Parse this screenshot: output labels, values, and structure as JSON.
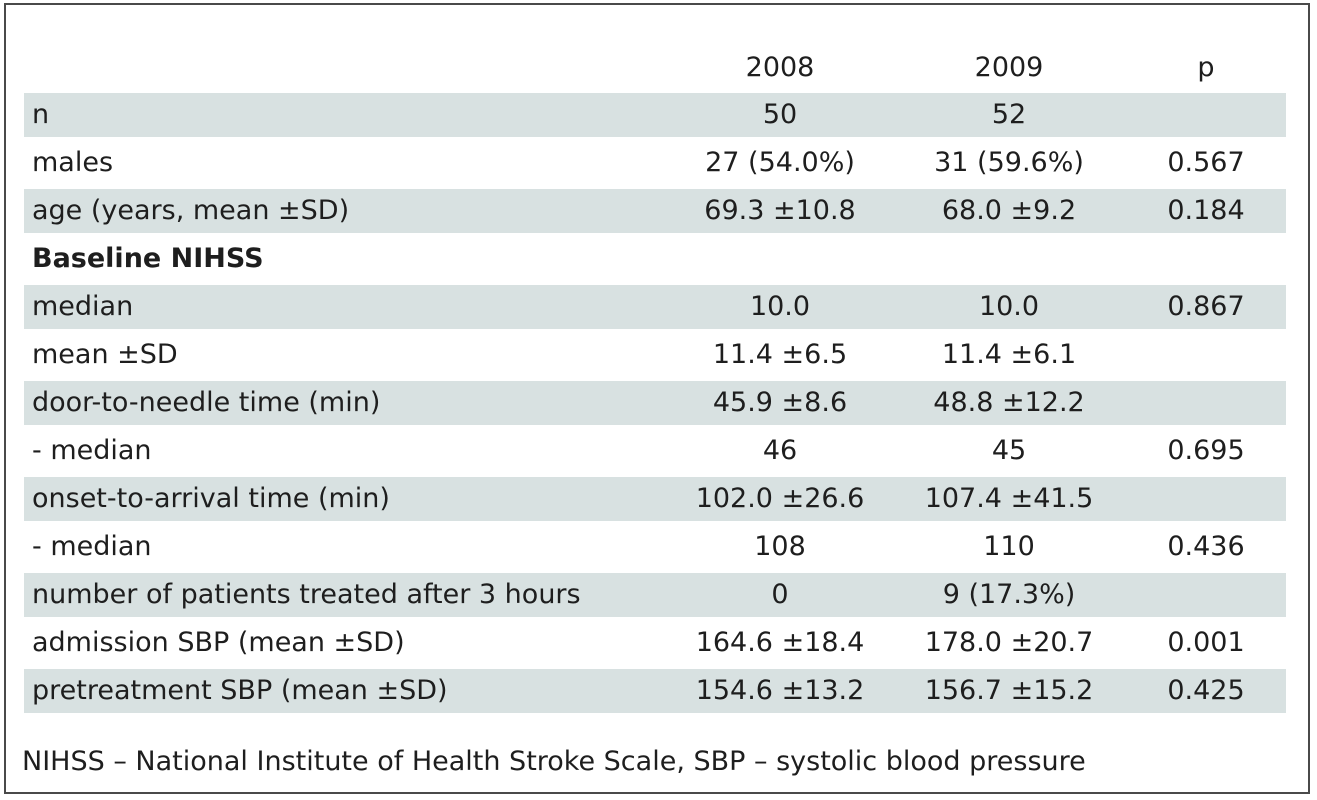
{
  "table": {
    "columns": [
      "",
      "2008",
      "2009",
      "p"
    ],
    "rows": [
      {
        "label": "n",
        "y2008": "50",
        "y2009": "52",
        "p": "",
        "shaded": true
      },
      {
        "label": "males",
        "y2008": "27 (54.0%)",
        "y2009": "31 (59.6%)",
        "p": "0.567",
        "shaded": false
      },
      {
        "label": "age (years, mean ±SD)",
        "y2008": "69.3 ±10.8",
        "y2009": "68.0 ±9.2",
        "p": "0.184",
        "shaded": true
      },
      {
        "label": "Baseline NIHSS",
        "y2008": "",
        "y2009": "",
        "p": "",
        "shaded": false,
        "section": true
      },
      {
        "label": "median",
        "y2008": "10.0",
        "y2009": "10.0",
        "p": "0.867",
        "shaded": true
      },
      {
        "label": "mean ±SD",
        "y2008": "11.4 ±6.5",
        "y2009": "11.4 ±6.1",
        "p": "",
        "shaded": false
      },
      {
        "label": "door-to-needle time (min)",
        "y2008": "45.9 ±8.6",
        "y2009": "48.8 ±12.2",
        "p": "",
        "shaded": true
      },
      {
        "label": "- median",
        "y2008": "46",
        "y2009": "45",
        "p": "0.695",
        "shaded": false
      },
      {
        "label": "onset-to-arrival time (min)",
        "y2008": "102.0 ±26.6",
        "y2009": "107.4 ±41.5",
        "p": "",
        "shaded": true
      },
      {
        "label": "- median",
        "y2008": "108",
        "y2009": "110",
        "p": "0.436",
        "shaded": false
      },
      {
        "label": "number of patients treated after 3 hours",
        "y2008": "0",
        "y2009": "9 (17.3%)",
        "p": "",
        "shaded": true
      },
      {
        "label": "admission SBP (mean ±SD)",
        "y2008": "164.6 ±18.4",
        "y2009": "178.0 ±20.7",
        "p": "0.001",
        "shaded": false
      },
      {
        "label": "pretreatment SBP (mean ±SD)",
        "y2008": "154.6 ±13.2",
        "y2009": "156.7 ±15.2",
        "p": "0.425",
        "shaded": true
      }
    ]
  },
  "footnote": "NIHSS – National Institute of Health Stroke Scale, SBP – systolic blood pressure"
}
